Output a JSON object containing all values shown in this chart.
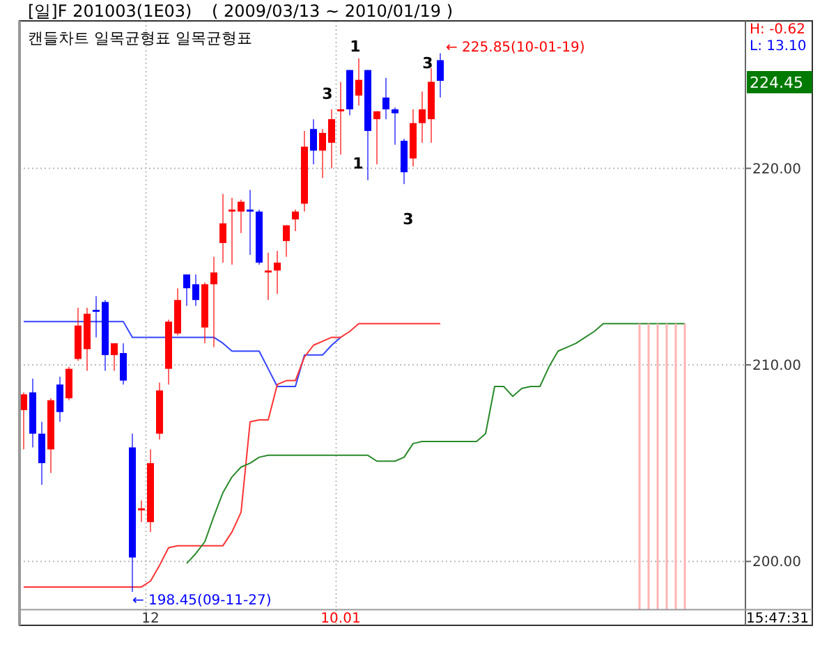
{
  "chart_data": {
    "type": "candlestick",
    "title": "[일]F 201003(1E03)",
    "subtitle": "( 2009/03/13 ~ 2010/01/19 )",
    "categories": [
      null,
      null,
      null,
      null,
      null,
      null,
      null,
      null,
      null,
      null,
      null,
      null,
      null,
      null,
      "12",
      null,
      null,
      null,
      null,
      null,
      null,
      null,
      null,
      null,
      null,
      null,
      null,
      null,
      null,
      null,
      null,
      null,
      null,
      null,
      null,
      "10.01",
      null,
      null,
      null,
      null,
      null,
      null,
      null,
      null,
      null,
      null,
      null,
      null,
      null,
      null,
      null,
      null,
      null,
      null,
      null,
      null,
      null,
      null,
      null,
      null,
      null,
      null,
      null,
      null,
      null,
      null,
      null,
      null,
      null,
      null,
      null,
      null,
      null,
      null,
      null,
      null,
      null,
      null,
      null,
      null
    ],
    "ohlc": [
      [
        207.7,
        208.6,
        205.7,
        208.5
      ],
      [
        208.6,
        209.3,
        205.8,
        206.5
      ],
      [
        206.5,
        207.1,
        203.9,
        205.0
      ],
      [
        205.7,
        208.3,
        204.5,
        208.2
      ],
      [
        209.0,
        209.4,
        207.1,
        207.6
      ],
      [
        208.3,
        209.9,
        208.2,
        209.8
      ],
      [
        210.3,
        212.9,
        210.2,
        212.0
      ],
      [
        210.8,
        212.9,
        209.7,
        212.6
      ],
      [
        212.8,
        213.5,
        211.4,
        212.7
      ],
      [
        213.2,
        213.3,
        209.7,
        210.5
      ],
      [
        210.5,
        211.1,
        209.7,
        211.1
      ],
      [
        210.6,
        211.1,
        209.0,
        209.2
      ],
      [
        205.8,
        206.5,
        198.45,
        200.2
      ],
      [
        202.6,
        203.1,
        202.0,
        202.7
      ],
      [
        202.0,
        205.7,
        201.5,
        205.0
      ],
      [
        206.5,
        209.1,
        206.2,
        208.7
      ],
      [
        209.8,
        212.3,
        209.0,
        212.2
      ],
      [
        211.6,
        213.9,
        211.5,
        213.3
      ],
      [
        214.6,
        214.6,
        213.0,
        213.9
      ],
      [
        214.1,
        214.6,
        213.0,
        213.3
      ],
      [
        211.9,
        214.2,
        211.1,
        214.1
      ],
      [
        214.1,
        215.5,
        210.9,
        214.7
      ],
      [
        216.2,
        218.7,
        215.2,
        217.2
      ],
      [
        217.8,
        218.5,
        215.1,
        217.9
      ],
      [
        217.8,
        218.4,
        216.7,
        218.3
      ],
      [
        217.9,
        218.9,
        215.6,
        217.8
      ],
      [
        217.8,
        217.9,
        215.1,
        215.2
      ],
      [
        214.7,
        215.7,
        213.3,
        214.8
      ],
      [
        214.8,
        215.8,
        213.6,
        215.2
      ],
      [
        216.3,
        217.1,
        215.5,
        217.1
      ],
      [
        217.4,
        217.9,
        216.8,
        217.8
      ],
      [
        218.2,
        221.9,
        217.8,
        221.1
      ],
      [
        222.0,
        222.5,
        220.2,
        220.9
      ],
      [
        220.9,
        222.0,
        219.5,
        221.8
      ],
      [
        221.3,
        223.0,
        220.0,
        222.5
      ],
      [
        222.9,
        224.4,
        220.7,
        223.0
      ],
      [
        225.0,
        225.0,
        222.7,
        223.0
      ],
      [
        223.7,
        225.6,
        223.2,
        224.5
      ],
      [
        225.0,
        225.0,
        219.4,
        221.9
      ],
      [
        222.5,
        222.9,
        220.2,
        222.9
      ],
      [
        223.6,
        224.6,
        222.5,
        223.0
      ],
      [
        223.0,
        223.1,
        221.2,
        222.8
      ],
      [
        221.4,
        221.5,
        219.2,
        219.8
      ],
      [
        220.5,
        223.0,
        220.1,
        222.3
      ],
      [
        222.3,
        223.9,
        221.3,
        223.0
      ],
      [
        222.5,
        225.1,
        221.3,
        224.4
      ],
      [
        225.5,
        225.85,
        223.6,
        224.45
      ],
      null,
      null,
      null,
      null,
      null,
      null,
      null,
      null,
      null,
      null,
      null,
      null,
      null,
      null,
      null,
      null,
      null,
      null,
      null,
      null,
      null,
      null,
      null,
      null,
      null,
      null,
      null,
      null,
      null,
      null,
      null,
      null,
      null
    ],
    "colors": [
      "#ff0000",
      "#0000ff",
      "#0000ff",
      "#ff0000",
      "#0000ff",
      "#ff0000",
      "#ff0000",
      "#ff0000",
      "#0000ff",
      "#0000ff",
      "#ff0000",
      "#0000ff",
      "#0000ff",
      "#ff0000",
      "#ff0000",
      "#ff0000",
      "#ff0000",
      "#ff0000",
      "#0000ff",
      "#0000ff",
      "#ff0000",
      "#ff0000",
      "#ff0000",
      "#ff0000",
      "#ff0000",
      "#0000ff",
      "#0000ff",
      "#ff0000",
      "#ff0000",
      "#ff0000",
      "#ff0000",
      "#ff0000",
      "#0000ff",
      "#ff0000",
      "#ff0000",
      "#ff0000",
      "#0000ff",
      "#ff0000",
      "#0000ff",
      "#ff0000",
      "#0000ff",
      "#0000ff",
      "#0000ff",
      "#ff0000",
      "#ff0000",
      "#ff0000",
      "#0000ff",
      null,
      null,
      null,
      null,
      null,
      null,
      null,
      null,
      null,
      null,
      null,
      null,
      null,
      null,
      null,
      null,
      null,
      null,
      null,
      null,
      null,
      null,
      null,
      null,
      null,
      null,
      null,
      null,
      null,
      null,
      null,
      null,
      null
    ],
    "series": [
      {
        "type": "line",
        "color": "#3344ff",
        "values": [
          212.2,
          212.2,
          212.2,
          212.2,
          212.2,
          212.2,
          212.2,
          212.2,
          212.2,
          212.2,
          212.2,
          212.2,
          211.4,
          211.4,
          211.4,
          211.4,
          211.4,
          211.4,
          211.4,
          211.4,
          211.4,
          211.4,
          211.1,
          210.7,
          210.7,
          210.7,
          210.7,
          209.8,
          208.9,
          208.9,
          208.9,
          210.5,
          210.5,
          210.5,
          211.0,
          211.4,
          null,
          null,
          null,
          null,
          null,
          null,
          null,
          null,
          null,
          null,
          null,
          null,
          null,
          null,
          null,
          null,
          null,
          null,
          null,
          null,
          null,
          null,
          null,
          null,
          null,
          null,
          null,
          null,
          null,
          null,
          null,
          null,
          null,
          null,
          null,
          null,
          null,
          null,
          null,
          null,
          null,
          null,
          null,
          null
        ]
      },
      {
        "type": "line",
        "color": "#ff3333",
        "values": [
          198.7,
          198.7,
          198.7,
          198.7,
          198.7,
          198.7,
          198.7,
          198.7,
          198.7,
          198.7,
          198.7,
          198.7,
          198.7,
          198.7,
          199.0,
          199.8,
          200.7,
          200.8,
          200.8,
          200.8,
          200.8,
          200.8,
          200.8,
          201.5,
          202.5,
          207.1,
          207.2,
          207.2,
          209.0,
          209.2,
          209.2,
          210.4,
          211.0,
          211.2,
          211.4,
          211.4,
          211.7,
          212.1,
          212.1,
          212.1,
          212.1,
          212.1,
          212.1,
          212.1,
          212.1,
          212.1,
          212.1,
          null,
          null,
          null,
          null,
          null,
          null,
          null,
          null,
          null,
          null,
          null,
          null,
          null,
          null,
          null,
          null,
          null,
          null,
          null,
          null,
          null,
          null,
          null,
          null,
          null,
          null,
          null,
          null,
          null,
          null,
          null,
          null,
          null
        ]
      },
      {
        "type": "line",
        "color": "#2a8a2a",
        "values": [
          null,
          null,
          null,
          null,
          null,
          null,
          null,
          null,
          null,
          null,
          null,
          null,
          null,
          null,
          null,
          null,
          null,
          null,
          199.9,
          200.4,
          201.0,
          202.3,
          203.5,
          204.3,
          204.8,
          205.0,
          205.3,
          205.4,
          205.4,
          205.4,
          205.4,
          205.4,
          205.4,
          205.4,
          205.4,
          205.4,
          205.4,
          205.4,
          205.4,
          205.1,
          205.1,
          205.1,
          205.3,
          206.0,
          206.1,
          206.1,
          206.1,
          206.1,
          206.1,
          206.1,
          206.1,
          206.5,
          208.9,
          208.9,
          208.4,
          208.8,
          208.9,
          208.9,
          209.9,
          210.7,
          210.9,
          211.1,
          211.4,
          211.7,
          212.1,
          212.1,
          212.1,
          212.1,
          212.1,
          212.1,
          212.1,
          212.1,
          212.1,
          212.1,
          null,
          null,
          null,
          null,
          null,
          null
        ]
      },
      {
        "type": "bar",
        "color": "#ffb3b3",
        "values": [
          null,
          null,
          null,
          null,
          null,
          null,
          null,
          null,
          null,
          null,
          null,
          null,
          null,
          null,
          null,
          null,
          null,
          null,
          null,
          null,
          null,
          null,
          null,
          null,
          null,
          null,
          null,
          null,
          null,
          null,
          null,
          null,
          null,
          null,
          null,
          null,
          null,
          null,
          null,
          null,
          null,
          null,
          null,
          null,
          null,
          null,
          null,
          null,
          null,
          null,
          null,
          null,
          null,
          null,
          null,
          null,
          null,
          null,
          null,
          null,
          null,
          null,
          null,
          null,
          null,
          null,
          null,
          null,
          212.1,
          212.1,
          212.1,
          212.1,
          212.1,
          212.1,
          null,
          null,
          null,
          null,
          null,
          null
        ]
      }
    ],
    "ylim": [
      197.55,
      227.5
    ],
    "yticks": [
      {
        "value": 200,
        "label": "200.00"
      },
      {
        "value": 210,
        "label": "210.00"
      },
      {
        "value": 220,
        "label": "220.00"
      }
    ],
    "grid": true,
    "annotations": [
      "캔들차트 일목균형표 일목균형표",
      "H: -0.62",
      "L: 13.10",
      "224.45",
      "← 225.85(10-01-19)",
      "← 198.45(09-11-27)",
      "1",
      "3",
      "1",
      "3",
      "3",
      "15:47:31"
    ]
  }
}
